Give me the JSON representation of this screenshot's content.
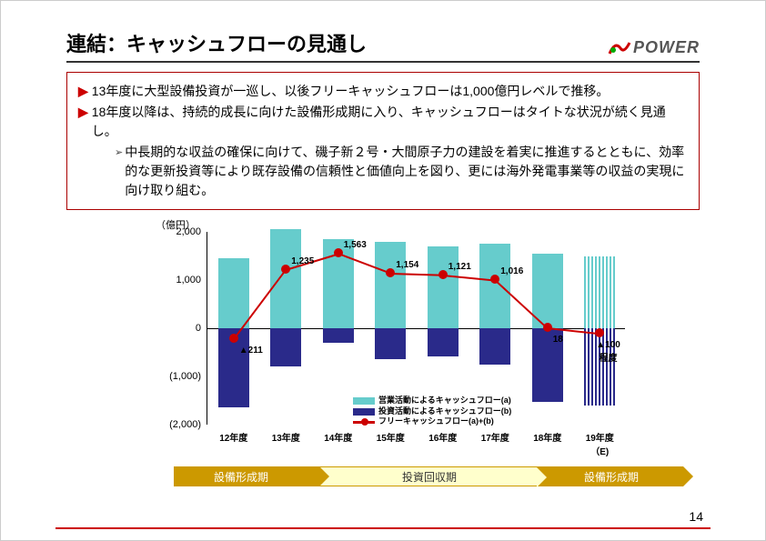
{
  "title": "連結：キャッシュフローの見通し",
  "logo": {
    "text": "POWER"
  },
  "bullets": [
    "13年度に大型設備投資が一巡し、以後フリーキャッシュフローは1,000億円レベルで推移。",
    "18年度以降は、持続的成長に向けた設備形成期に入り、キャッシュフローはタイトな状況が続く見通し。"
  ],
  "subbullet": "中長期的な収益の確保に向けて、磯子新２号・大間原子力の建設を着実に推進するとともに、効率的な更新投資等により既存設備の信頼性と価値向上を図り、更には海外発電事業等の収益の実現に向け取り組む。",
  "chart": {
    "type": "bar+line",
    "ylabel": "（億円）",
    "ylim": [
      -2000,
      2000
    ],
    "yticks": [
      -2000,
      -1000,
      0,
      1000,
      2000
    ],
    "ytick_labels": [
      "(2,000)",
      "(1,000)",
      "0",
      "1,000",
      "2,000"
    ],
    "categories": [
      "12年度",
      "13年度",
      "14年度",
      "15年度",
      "16年度",
      "17年度",
      "18年度",
      "19年度（E)"
    ],
    "pos_bars": [
      1450,
      2050,
      1850,
      1800,
      1700,
      1750,
      1550,
      1500
    ],
    "neg_bars": [
      -1650,
      -800,
      -300,
      -650,
      -580,
      -750,
      -1530,
      -1600
    ],
    "line": [
      -211,
      1235,
      1563,
      1154,
      1121,
      1016,
      18,
      -100
    ],
    "line_labels": [
      "▲211",
      "1,235",
      "1,563",
      "1,154",
      "1,121",
      "1,016",
      "18",
      "▲100\n程度"
    ],
    "last_hatched": true,
    "colors": {
      "pos": "#66cccc",
      "neg": "#2a2a8a",
      "line": "#cc0000",
      "bg": "#ffffff"
    },
    "legend": [
      {
        "label": "営業活動によるキャッシュフロー(a)",
        "color": "#66cccc",
        "type": "box"
      },
      {
        "label": "投資活動によるキャッシュフロー(b)",
        "color": "#2a2a8a",
        "type": "box"
      },
      {
        "label": "フリーキャッシュフロー(a)+(b)",
        "color": "#cc0000",
        "type": "line"
      }
    ]
  },
  "phases": [
    "設備形成期",
    "投資回収期",
    "設備形成期"
  ],
  "page": "14"
}
